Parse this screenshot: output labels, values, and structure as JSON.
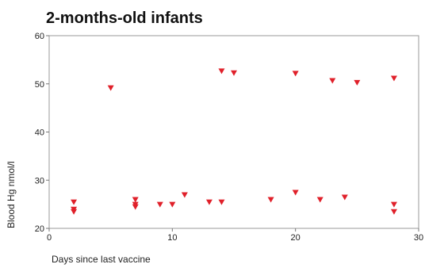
{
  "chart_data": {
    "type": "scatter",
    "title": "2-months-old infants",
    "xlabel": "Days since last vaccine",
    "ylabel": "Blood Hg nmol/l",
    "xlim": [
      0,
      30
    ],
    "ylim": [
      20,
      60
    ],
    "x_ticks": [
      "0",
      "10",
      "20",
      "30"
    ],
    "y_ticks": [
      "20",
      "30",
      "40",
      "50",
      "60"
    ],
    "grid": false,
    "legend": "none",
    "marker": "triangle-down",
    "marker_color": "#e0202a",
    "frame_color": "#999999",
    "series": [
      {
        "x": [
          2,
          2,
          2,
          5,
          7,
          7,
          7,
          9,
          10,
          11,
          13,
          14,
          14,
          15,
          18,
          20,
          20,
          22,
          23,
          24,
          25,
          28,
          28,
          28
        ],
        "y": [
          25.5,
          24,
          23.5,
          49.2,
          26,
          25,
          24.5,
          25,
          25,
          27,
          25.5,
          25.5,
          52.7,
          52.3,
          26,
          27.5,
          52.2,
          26,
          50.7,
          26.5,
          50.3,
          25,
          23.5,
          51.2
        ]
      }
    ]
  }
}
